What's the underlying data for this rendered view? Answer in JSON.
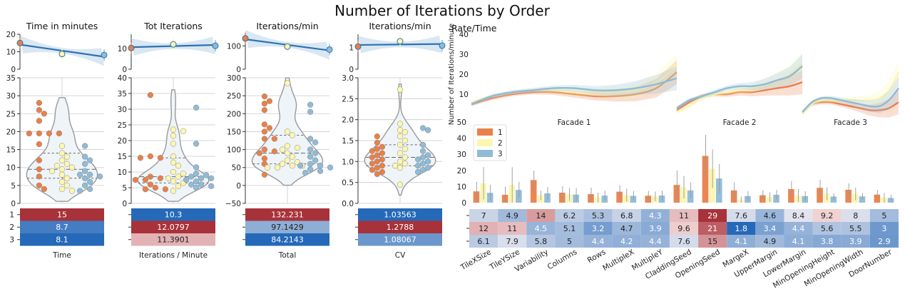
{
  "title": "Number of Iterations by Order",
  "colors": {
    "order1": "#e8804a",
    "order2": "#fdf6b0",
    "order3": "#8fbbd6",
    "trend": "#2c72b3",
    "band": "#cfe1f0",
    "violin_fill": "#eef4f8",
    "violin_stroke": "#999999",
    "cell_high": "#a8323a",
    "cell_low": "#2569b8"
  },
  "chart_data": [
    {
      "type": "scatter",
      "title": "Time in minutes",
      "xlabel": "Time",
      "reg_ylim": [
        0,
        20
      ],
      "reg_yticks": [
        "0",
        "10",
        "20"
      ],
      "reg_y": [
        15,
        8.7,
        8.1
      ],
      "violin_ylim": [
        0,
        35
      ],
      "violin_yticks": [
        "0",
        "5",
        "10",
        "15",
        "20",
        "25",
        "30",
        "35"
      ],
      "points": {
        "1": [
          28,
          26,
          25,
          23,
          19.5,
          19.5,
          19.5,
          19.5,
          16.5,
          12,
          9.5,
          7.5,
          5,
          4
        ],
        "2": [
          16,
          14,
          13,
          12,
          11,
          10.5,
          10,
          9.5,
          9,
          8,
          7,
          6,
          5,
          4,
          3.5
        ],
        "3": [
          16,
          13,
          12,
          11,
          9,
          8,
          8,
          7.5,
          7,
          6,
          5,
          4,
          3.5
        ]
      },
      "table_rows": [
        "1",
        "2",
        "3"
      ],
      "table_values": [
        "15",
        "8.7",
        "8.1"
      ],
      "table_norm": [
        1.0,
        0.08,
        0.0
      ]
    },
    {
      "type": "scatter",
      "title": "Tot Iterations",
      "xlabel": "Iterations / Minute",
      "reg_ylim": [
        0,
        17
      ],
      "reg_yticks": [
        "0",
        "10"
      ],
      "reg_y": [
        10.3,
        12.0797,
        11.3901
      ],
      "violin_ylim": [
        0,
        40
      ],
      "violin_yticks": [
        "0",
        "5",
        "10",
        "15",
        "20",
        "25",
        "30",
        "35",
        "40"
      ],
      "points": {
        "1": [
          34.5,
          15,
          14.5,
          14.5,
          8.5,
          8,
          7.5,
          7.5,
          6,
          5,
          4.5,
          4.5
        ],
        "2": [
          23.5,
          23,
          21.5,
          19,
          15,
          13,
          12,
          10,
          9.5,
          8.5,
          8,
          7,
          6.5,
          5.5,
          4
        ],
        "3": [
          30.5,
          19,
          11.5,
          9.5,
          9,
          8.5,
          8,
          8,
          7.5,
          7,
          6,
          6,
          5.5,
          5
        ]
      },
      "table_rows": [
        "1",
        "2",
        "3"
      ],
      "table_values": [
        "10.3",
        "12.0797",
        "11.3901"
      ],
      "table_norm": [
        0.0,
        1.0,
        0.61
      ]
    },
    {
      "type": "scatter",
      "title": "Iterations/min",
      "xlabel": "Total",
      "reg_ylim": [
        0,
        150
      ],
      "reg_yticks": [
        "0",
        "100"
      ],
      "reg_y": [
        132.231,
        97.1429,
        84.2143
      ],
      "violin_ylim": [
        -50,
        300
      ],
      "violin_yticks": [
        "−50",
        "0",
        "50",
        "100",
        "150",
        "200",
        "250",
        "300"
      ],
      "points": {
        "1": [
          248,
          235,
          228,
          210,
          170,
          160,
          150,
          130,
          130,
          100,
          95,
          90,
          75,
          60,
          30
        ],
        "2": [
          285,
          150,
          140,
          110,
          105,
          100,
          90,
          80,
          70,
          65,
          60,
          55,
          55,
          50,
          50
        ],
        "3": [
          225,
          205,
          130,
          120,
          100,
          90,
          80,
          70,
          60,
          55,
          55,
          50,
          45,
          40,
          35
        ]
      },
      "table_rows": [
        "1",
        "2",
        "3"
      ],
      "table_values": [
        "132.231",
        "97.1429",
        "84.2143"
      ],
      "table_norm": [
        1.0,
        0.27,
        0.0
      ]
    },
    {
      "type": "scatter",
      "title": "Iterations/min",
      "xlabel": "CV",
      "reg_ylim": [
        0,
        1.6
      ],
      "reg_yticks": [
        "0",
        "1"
      ],
      "reg_y": [
        1.03563,
        1.2788,
        1.08067
      ],
      "violin_ylim": [
        0,
        3
      ],
      "violin_yticks": [
        "0.0",
        "0.5",
        "1.0",
        "1.5",
        "2.0",
        "2.5",
        "3.0"
      ],
      "points": {
        "1": [
          1.6,
          1.45,
          1.35,
          1.3,
          1.25,
          1.2,
          1.15,
          1.1,
          1.05,
          1.0,
          0.95,
          0.9,
          0.85,
          0.8,
          0.75,
          0.7
        ],
        "2": [
          2.72,
          1.9,
          1.75,
          1.7,
          1.6,
          1.5,
          1.4,
          1.3,
          1.2,
          1.1,
          1.0,
          0.95,
          0.9,
          0.85,
          0.45
        ],
        "3": [
          1.8,
          1.75,
          1.4,
          1.25,
          1.15,
          1.1,
          1.05,
          1.0,
          0.95,
          0.9,
          0.85,
          0.8,
          0.75
        ]
      },
      "table_rows": [
        "1",
        "2",
        "3"
      ],
      "table_values": [
        "1.03563",
        "1.2788",
        "1.08067"
      ],
      "table_norm": [
        0.0,
        1.0,
        0.18
      ]
    },
    {
      "type": "line",
      "title": "Rate/Time",
      "ylabel": "Number of Iterations/minute",
      "ylim": [
        0,
        40
      ],
      "yticks": [
        "0",
        "10",
        "20",
        "30",
        "40"
      ],
      "facets": [
        "Facade 1",
        "Facade 2",
        "Facade 3"
      ],
      "series": [
        {
          "name": "1",
          "facets": [
            [
              5,
              8,
              10,
              11,
              11,
              10,
              9,
              9,
              10,
              13,
              21
            ],
            [
              2,
              6,
              9,
              10,
              10,
              11,
              11,
              12,
              13,
              14,
              16
            ],
            [
              1,
              5,
              6,
              6,
              5,
              4,
              3,
              2,
              2,
              3,
              6
            ]
          ]
        },
        {
          "name": "2",
          "facets": [
            [
              6,
              9,
              11,
              12,
              12,
              11,
              11,
              11,
              12,
              16,
              24
            ],
            [
              1,
              4,
              8,
              10,
              11,
              12,
              13,
              15,
              17,
              20,
              25
            ],
            [
              0,
              5,
              7,
              7,
              7,
              7,
              7,
              7,
              8,
              12,
              21
            ]
          ]
        },
        {
          "name": "3",
          "facets": [
            [
              5,
              9,
              11,
              12,
              13,
              13,
              12,
              12,
              13,
              15,
              18
            ],
            [
              3,
              7,
              9,
              11,
              13,
              14,
              14,
              15,
              17,
              19,
              24
            ],
            [
              1,
              6,
              8,
              8,
              7,
              6,
              5,
              4,
              4,
              7,
              13
            ]
          ]
        }
      ]
    },
    {
      "type": "bar",
      "ylim": [
        0,
        50
      ],
      "yticks": [
        "0",
        "10",
        "20",
        "30",
        "40",
        "50"
      ],
      "legend": [
        "1",
        "2",
        "3"
      ],
      "legend_position": "top-left",
      "categories": [
        "TileXSize",
        "TileYSize",
        "Variability",
        "Columns",
        "Rows",
        "MultipleX",
        "MultipleY",
        "CladdingSeed",
        "OpeningSeed",
        "MargeX",
        "UpperMargin",
        "LowerMargin",
        "MinOpeningHeight",
        "MinOpeningWidth",
        "DoorNumber"
      ],
      "series": [
        {
          "name": "1",
          "values": [
            7,
            4.9,
            14,
            6.2,
            5.3,
            6.8,
            4.3,
            11,
            29,
            7.6,
            4.6,
            8.4,
            9.2,
            8,
            5
          ],
          "err": [
            6,
            5,
            6,
            4,
            4,
            4,
            3,
            9,
            13,
            5,
            3,
            5,
            5,
            4,
            3
          ]
        },
        {
          "name": "2",
          "values": [
            12,
            11,
            4.5,
            5.1,
            3.2,
            4.7,
            3.9,
            9.6,
            21,
            1.8,
            3.4,
            4.4,
            5.6,
            5.5,
            3
          ],
          "err": [
            10,
            11,
            3,
            4,
            3,
            4,
            3,
            7,
            12,
            2,
            3,
            4,
            4,
            4,
            3
          ]
        },
        {
          "name": "3",
          "values": [
            6.1,
            7.9,
            5.8,
            5,
            4.4,
            4.2,
            4.4,
            7.6,
            15,
            4.1,
            4.9,
            4.1,
            3.8,
            3.9,
            2.9
          ],
          "err": [
            5,
            5,
            4,
            4,
            3,
            3,
            3,
            5,
            9,
            3,
            3,
            3,
            2,
            2,
            2
          ]
        }
      ],
      "table_values": [
        [
          "7",
          "4.9",
          "14",
          "6.2",
          "5.3",
          "6.8",
          "4.3",
          "11",
          "29",
          "7.6",
          "4.6",
          "8.4",
          "9.2",
          "8",
          "5"
        ],
        [
          "12",
          "11",
          "4.5",
          "5.1",
          "3.2",
          "4.7",
          "3.9",
          "9.6",
          "21",
          "1.8",
          "3.4",
          "4.4",
          "5.6",
          "5.5",
          "3"
        ],
        [
          "6.1",
          "7.9",
          "5.8",
          "5",
          "4.4",
          "4.2",
          "4.4",
          "7.6",
          "15",
          "4.1",
          "4.9",
          "4.1",
          "3.8",
          "3.9",
          "2.9"
        ]
      ]
    }
  ]
}
